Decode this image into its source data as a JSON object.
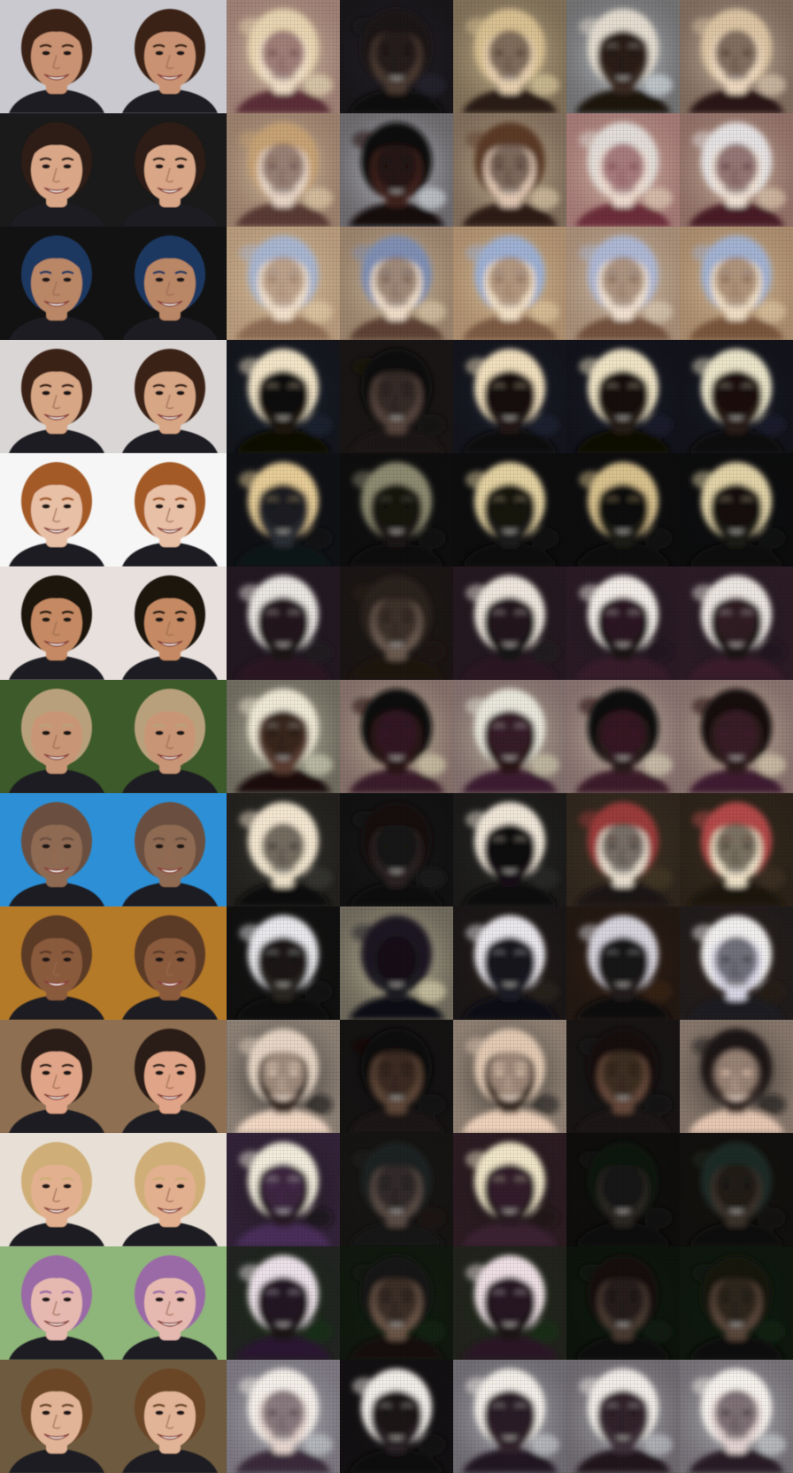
{
  "grid": {
    "rows": 13,
    "columns": 7,
    "column_roles": [
      "input",
      "reconstruction",
      "generated",
      "generated",
      "generated",
      "generated",
      "generated"
    ]
  },
  "rows": [
    {
      "face": {
        "skin": "#c99373",
        "hair": "#3a2416",
        "bg": "#c9c9cf"
      },
      "generated": [
        {
          "bg": "#f1e4c0",
          "skin": "#f2dfc8",
          "hair": "#e8d4b0",
          "shadow": "#5c2f38"
        },
        {
          "bg": "#2a2630",
          "skin": "#4b3a33",
          "hair": "#1b1717",
          "shadow": "#0b0908"
        },
        {
          "bg": "#e9d7a8",
          "skin": "#e8d0b0",
          "hair": "#d8c091",
          "shadow": "#2b1c18"
        },
        {
          "bg": "#e0e9ef",
          "skin": "#3b2a22",
          "hair": "#e4dccf",
          "shadow": "#1b1210"
        },
        {
          "bg": "#e9d6bd",
          "skin": "#efd9c0",
          "hair": "#dcc4a3",
          "shadow": "#2a1612"
        }
      ]
    },
    {
      "face": {
        "skin": "#d9a788",
        "hair": "#2e1c12",
        "bg": "#1a1a1a"
      },
      "generated": [
        {
          "bg": "#ecd7b3",
          "skin": "#e9d7c8",
          "hair": "#c7a274",
          "shadow": "#5a3a34"
        },
        {
          "bg": "#dde4ea",
          "skin": "#40231e",
          "hair": "#0f0a0a",
          "shadow": "#14080a"
        },
        {
          "bg": "#e7d3b1",
          "skin": "#e2c8b3",
          "hair": "#5b3b27",
          "shadow": "#2d1b16"
        },
        {
          "bg": "#ead8c0",
          "skin": "#efdcd0",
          "hair": "#e2ddd8",
          "shadow": "#6d2d3a"
        },
        {
          "bg": "#e8d4b7",
          "skin": "#f0e2d6",
          "hair": "#e5e2e3",
          "shadow": "#4a1f27"
        }
      ]
    },
    {
      "face": {
        "skin": "#b98766",
        "hair": "#1f3760",
        "bg": "#121212"
      },
      "generated": [
        {
          "bg": "#e9d3ad",
          "skin": "#f3e2cd",
          "hair": "#a9b6d0",
          "shadow": "#8f6d55"
        },
        {
          "bg": "#e5d2b0",
          "skin": "#f1dfca",
          "hair": "#7f8fb4",
          "shadow": "#5e4336"
        },
        {
          "bg": "#e8d0a5",
          "skin": "#f4e1c7",
          "hair": "#9eb0d3",
          "shadow": "#7f5c45"
        },
        {
          "bg": "#e5d6bf",
          "skin": "#f3e3d1",
          "hair": "#aeb8d4",
          "shadow": "#75533f"
        },
        {
          "bg": "#e6cfa8",
          "skin": "#f2dfc6",
          "hair": "#a3b2d2",
          "shadow": "#7a563e"
        }
      ]
    },
    {
      "face": {
        "skin": "#d7a685",
        "hair": "#3a2219",
        "bg": "#dad6d5"
      },
      "generated": [
        {
          "bg": "#1e2838",
          "skin": "#1a1210",
          "hair": "#f2e4c7",
          "shadow": "#0b0706"
        },
        {
          "bg": "#151616",
          "skin": "#56443e",
          "hair": "#0f0d0c",
          "shadow": "#1c1412"
        },
        {
          "bg": "#1d2436",
          "skin": "#231913",
          "hair": "#f1dfbd",
          "shadow": "#0c0807"
        },
        {
          "bg": "#1b2133",
          "skin": "#281a15",
          "hair": "#efe3c4",
          "shadow": "#0b0706"
        },
        {
          "bg": "#1a2030",
          "skin": "#2b1d17",
          "hair": "#ebe4c9",
          "shadow": "#0c0807"
        }
      ]
    },
    {
      "face": {
        "skin": "#e8c0a6",
        "hair": "#a45a28",
        "bg": "#f6f6f6"
      },
      "generated": [
        {
          "bg": "#0f0f14",
          "skin": "#2c2f36",
          "hair": "#e6cc97",
          "shadow": "#111316"
        },
        {
          "bg": "#101012",
          "skin": "#1a1917",
          "hair": "#8c8a6f",
          "shadow": "#0c0c0b"
        },
        {
          "bg": "#0f1013",
          "skin": "#1f1d1a",
          "hair": "#e3d1a1",
          "shadow": "#0b0a09"
        },
        {
          "bg": "#101114",
          "skin": "#1b1a18",
          "hair": "#d8c18d",
          "shadow": "#0a0908"
        },
        {
          "bg": "#0e0f12",
          "skin": "#1d1c19",
          "hair": "#e2d3a8",
          "shadow": "#0a0a09"
        }
      ]
    },
    {
      "face": {
        "skin": "#c58a63",
        "hair": "#1b120d",
        "bg": "#e7e0dd"
      },
      "generated": [
        {
          "bg": "#1a1a22",
          "skin": "#1a1616",
          "hair": "#eae6e2",
          "shadow": "#2a1620"
        },
        {
          "bg": "#1b1918",
          "skin": "#6b5a4f",
          "hair": "#2a201a",
          "shadow": "#1a1210"
        },
        {
          "bg": "#1c1a1d",
          "skin": "#171212",
          "hair": "#eee6dd",
          "shadow": "#2c1622"
        },
        {
          "bg": "#1a191c",
          "skin": "#1b1414",
          "hair": "#f1ece6",
          "shadow": "#371b2b"
        },
        {
          "bg": "#1a191c",
          "skin": "#1f1717",
          "hair": "#ece6e2",
          "shadow": "#3a1d2c"
        }
      ]
    },
    {
      "face": {
        "skin": "#c89677",
        "hair": "#b9a07c",
        "bg": "#3d5a2a"
      },
      "generated": [
        {
          "bg": "#d8dcc2",
          "skin": "#5b3e32",
          "hair": "#efe8d6",
          "shadow": "#1c1110"
        },
        {
          "bg": "#e0d9b6",
          "skin": "#2a1717",
          "hair": "#100a0a",
          "shadow": "#3b1a2c"
        },
        {
          "bg": "#d9d6b6",
          "skin": "#2a1818",
          "hair": "#e9e7dc",
          "shadow": "#3e1e33"
        },
        {
          "bg": "#e3dcc0",
          "skin": "#2c1a1a",
          "hair": "#110b0c",
          "shadow": "#3d1a2c"
        },
        {
          "bg": "#e2d9b9",
          "skin": "#2d1a1a",
          "hair": "#120c0c",
          "shadow": "#401d30"
        }
      ]
    },
    {
      "face": {
        "skin": "#8f6a52",
        "hair": "#6b4f40",
        "bg": "#2d8fd6"
      },
      "generated": [
        {
          "bg": "#3b3c35",
          "skin": "#efe3cb",
          "hair": "#f3e6d0",
          "shadow": "#0f0b0b"
        },
        {
          "bg": "#1a1b1d",
          "skin": "#2b2320",
          "hair": "#121011",
          "shadow": "#0b0909"
        },
        {
          "bg": "#2c2e2b",
          "skin": "#141112",
          "hair": "#f0e6d8",
          "shadow": "#0d0a0a"
        },
        {
          "bg": "#4a3d2a",
          "skin": "#e9dfcf",
          "hair": "#9b3a3a",
          "shadow": "#1b1413"
        },
        {
          "bg": "#3f3324",
          "skin": "#efe2c8",
          "hair": "#b44a4a",
          "shadow": "#1c1510"
        }
      ]
    },
    {
      "face": {
        "skin": "#8a5a3d",
        "hair": "#5b3a28",
        "bg": "#b57a28"
      },
      "generated": [
        {
          "bg": "#151515",
          "skin": "#2b2722",
          "hair": "#e9e8ec",
          "shadow": "#0d0c0b"
        },
        {
          "bg": "#e8dfb8",
          "skin": "#1f1a22",
          "hair": "#1a1720",
          "shadow": "#0d0b12"
        },
        {
          "bg": "#2b231b",
          "skin": "#1d1b26",
          "hair": "#eae7ec",
          "shadow": "#0d0c13"
        },
        {
          "bg": "#3b2619",
          "skin": "#241d1c",
          "hair": "#d6d3dc",
          "shadow": "#0f0c0c"
        },
        {
          "bg": "#2a1e14",
          "skin": "#d9d7e6",
          "hair": "#f1eeee",
          "shadow": "#1a1a22"
        }
      ]
    },
    {
      "face": {
        "skin": "#e0a588",
        "hair": "#2a1b12",
        "bg": "#8e6f52"
      },
      "generated": [
        {
          "bg": "#121616",
          "skin": "#3b2d27",
          "hair": "#e6d5c4",
          "shadow": "#f2d8c4"
        },
        {
          "bg": "#0e1012",
          "skin": "#5f4638",
          "hair": "#0d0b0b",
          "shadow": "#1b1412"
        },
        {
          "bg": "#1c1e1c",
          "skin": "#3a2e26",
          "hair": "#e2c9b3",
          "shadow": "#eed1bb"
        },
        {
          "bg": "#111315",
          "skin": "#664a3a",
          "hair": "#120e0d",
          "shadow": "#1d1512"
        },
        {
          "bg": "#121414",
          "skin": "#3b2f29",
          "hair": "#1a1413",
          "shadow": "#e6c7b2"
        }
      ]
    },
    {
      "face": {
        "skin": "#e2b08f",
        "hair": "#cfae78",
        "bg": "#e8e0d6"
      },
      "generated": [
        {
          "bg": "#16130f",
          "skin": "#2a1d25",
          "hair": "#f1ecdc",
          "shadow": "#4a2f5a"
        },
        {
          "bg": "#1a1714",
          "skin": "#5a4b45",
          "hair": "#1d2220",
          "shadow": "#121212"
        },
        {
          "bg": "#1a1612",
          "skin": "#2b1e24",
          "hair": "#f0e5c8",
          "shadow": "#3a2030"
        },
        {
          "bg": "#121110",
          "skin": "#2a2522",
          "hair": "#0e1311",
          "shadow": "#0b0a09"
        },
        {
          "bg": "#171512",
          "skin": "#3b3029",
          "hair": "#1d2b26",
          "shadow": "#0e0c0a"
        }
      ]
    },
    {
      "face": {
        "skin": "#e6b9b0",
        "hair": "#9a6aa6",
        "bg": "#8fb67a"
      },
      "generated": [
        {
          "bg": "#16320f",
          "skin": "#1e1416",
          "hair": "#ece1e8",
          "shadow": "#2a1830"
        },
        {
          "bg": "#0f2410",
          "skin": "#6a5547",
          "hair": "#191312",
          "shadow": "#120d0c"
        },
        {
          "bg": "#183010",
          "skin": "#1f1417",
          "hair": "#eedfe4",
          "shadow": "#2b1728"
        },
        {
          "bg": "#0e2010",
          "skin": "#493b33",
          "hair": "#151110",
          "shadow": "#0c0908"
        },
        {
          "bg": "#0f2412",
          "skin": "#5a473b",
          "hair": "#161211",
          "shadow": "#0d0a09"
        }
      ]
    },
    {
      "face": {
        "skin": "#e2b497",
        "hair": "#6b4526",
        "bg": "#6e5a3e"
      },
      "generated": [
        {
          "bg": "#cdd3d6",
          "skin": "#e8d7d0",
          "hair": "#f4efe9",
          "shadow": "#3a2c3a"
        },
        {
          "bg": "#151416",
          "skin": "#2a2126",
          "hair": "#f0ece8",
          "shadow": "#100c0e"
        },
        {
          "bg": "#d0d6d8",
          "skin": "#33232b",
          "hair": "#f3eee8",
          "shadow": "#211520"
        },
        {
          "bg": "#c9ced2",
          "skin": "#40303a",
          "hair": "#f1ece7",
          "shadow": "#24171f"
        },
        {
          "bg": "#d3d8da",
          "skin": "#e4d4d2",
          "hair": "#f5f1ec",
          "shadow": "#2a1e28"
        }
      ]
    }
  ]
}
